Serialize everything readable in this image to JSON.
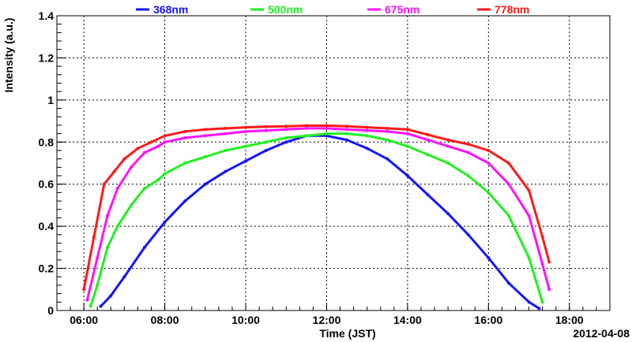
{
  "chart_data": {
    "type": "line",
    "xlabel": "Time (JST)",
    "ylabel": "Intensity (a.u.)",
    "date_label": "2012-04-08",
    "xlim": [
      "05:20",
      "19:00"
    ],
    "ylim": [
      0,
      1.4
    ],
    "x_ticks": [
      "06:00",
      "08:00",
      "10:00",
      "12:00",
      "14:00",
      "16:00",
      "18:00"
    ],
    "y_ticks": [
      "0",
      "0.2",
      "0.4",
      "0.6",
      "0.8",
      "1",
      "1.2",
      "1.4"
    ],
    "grid": true,
    "legend_position": "top",
    "series": [
      {
        "name": "368nm",
        "color": "#1515ff",
        "points": [
          [
            "06:25",
            0.02
          ],
          [
            "06:40",
            0.07
          ],
          [
            "07:00",
            0.16
          ],
          [
            "07:30",
            0.3
          ],
          [
            "08:00",
            0.42
          ],
          [
            "08:30",
            0.52
          ],
          [
            "09:00",
            0.6
          ],
          [
            "09:30",
            0.66
          ],
          [
            "10:00",
            0.71
          ],
          [
            "10:30",
            0.76
          ],
          [
            "11:00",
            0.8
          ],
          [
            "11:30",
            0.83
          ],
          [
            "12:00",
            0.83
          ],
          [
            "12:30",
            0.81
          ],
          [
            "13:00",
            0.77
          ],
          [
            "13:30",
            0.72
          ],
          [
            "14:00",
            0.64
          ],
          [
            "14:30",
            0.55
          ],
          [
            "15:00",
            0.46
          ],
          [
            "15:30",
            0.36
          ],
          [
            "16:00",
            0.25
          ],
          [
            "16:30",
            0.13
          ],
          [
            "17:00",
            0.04
          ],
          [
            "17:15",
            0.01
          ]
        ]
      },
      {
        "name": "500nm",
        "color": "#1ff21f",
        "points": [
          [
            "06:10",
            0.02
          ],
          [
            "06:20",
            0.12
          ],
          [
            "06:35",
            0.3
          ],
          [
            "06:50",
            0.4
          ],
          [
            "07:10",
            0.5
          ],
          [
            "07:30",
            0.58
          ],
          [
            "07:50",
            0.62
          ],
          [
            "08:00",
            0.65
          ],
          [
            "08:30",
            0.7
          ],
          [
            "09:00",
            0.73
          ],
          [
            "09:30",
            0.76
          ],
          [
            "10:00",
            0.78
          ],
          [
            "10:30",
            0.8
          ],
          [
            "11:00",
            0.82
          ],
          [
            "11:30",
            0.83
          ],
          [
            "12:00",
            0.84
          ],
          [
            "12:30",
            0.84
          ],
          [
            "13:00",
            0.83
          ],
          [
            "13:30",
            0.81
          ],
          [
            "14:00",
            0.78
          ],
          [
            "14:30",
            0.74
          ],
          [
            "15:00",
            0.7
          ],
          [
            "15:30",
            0.64
          ],
          [
            "16:00",
            0.56
          ],
          [
            "16:30",
            0.45
          ],
          [
            "17:00",
            0.25
          ],
          [
            "17:20",
            0.04
          ]
        ]
      },
      {
        "name": "675nm",
        "color": "#ff12ff",
        "points": [
          [
            "06:05",
            0.05
          ],
          [
            "06:20",
            0.25
          ],
          [
            "06:35",
            0.45
          ],
          [
            "06:50",
            0.58
          ],
          [
            "07:10",
            0.68
          ],
          [
            "07:30",
            0.75
          ],
          [
            "07:50",
            0.78
          ],
          [
            "08:00",
            0.8
          ],
          [
            "08:30",
            0.82
          ],
          [
            "09:00",
            0.83
          ],
          [
            "09:30",
            0.84
          ],
          [
            "10:00",
            0.85
          ],
          [
            "10:30",
            0.855
          ],
          [
            "11:00",
            0.86
          ],
          [
            "11:30",
            0.865
          ],
          [
            "12:00",
            0.865
          ],
          [
            "12:30",
            0.86
          ],
          [
            "13:00",
            0.855
          ],
          [
            "13:30",
            0.85
          ],
          [
            "14:00",
            0.84
          ],
          [
            "14:30",
            0.81
          ],
          [
            "15:00",
            0.78
          ],
          [
            "15:30",
            0.75
          ],
          [
            "16:00",
            0.7
          ],
          [
            "16:30",
            0.6
          ],
          [
            "17:00",
            0.45
          ],
          [
            "17:20",
            0.22
          ],
          [
            "17:30",
            0.1
          ]
        ]
      },
      {
        "name": "778nm",
        "color": "#ff1a1a",
        "points": [
          [
            "06:00",
            0.1
          ],
          [
            "06:15",
            0.35
          ],
          [
            "06:30",
            0.6
          ],
          [
            "06:45",
            0.66
          ],
          [
            "07:00",
            0.72
          ],
          [
            "07:20",
            0.77
          ],
          [
            "07:40",
            0.8
          ],
          [
            "08:00",
            0.83
          ],
          [
            "08:30",
            0.85
          ],
          [
            "09:00",
            0.86
          ],
          [
            "09:30",
            0.865
          ],
          [
            "10:00",
            0.87
          ],
          [
            "10:30",
            0.873
          ],
          [
            "11:00",
            0.875
          ],
          [
            "11:30",
            0.878
          ],
          [
            "12:00",
            0.878
          ],
          [
            "12:30",
            0.875
          ],
          [
            "13:00",
            0.87
          ],
          [
            "13:30",
            0.865
          ],
          [
            "14:00",
            0.86
          ],
          [
            "14:30",
            0.835
          ],
          [
            "15:00",
            0.81
          ],
          [
            "15:30",
            0.79
          ],
          [
            "16:00",
            0.76
          ],
          [
            "16:30",
            0.7
          ],
          [
            "17:00",
            0.57
          ],
          [
            "17:20",
            0.35
          ],
          [
            "17:30",
            0.23
          ]
        ]
      }
    ]
  }
}
